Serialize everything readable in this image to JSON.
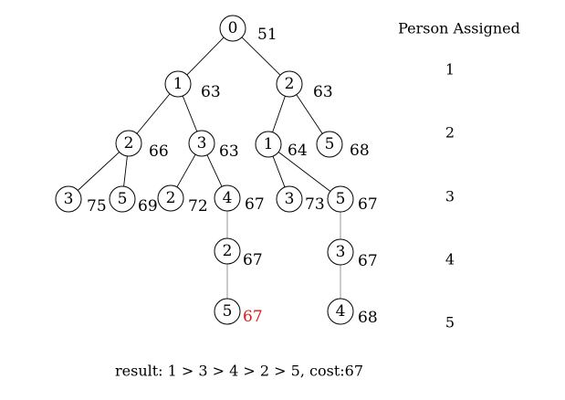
{
  "tree": {
    "nodes": [
      {
        "id": "n0",
        "label": "0",
        "cost": "51"
      },
      {
        "id": "n1",
        "label": "1",
        "cost": "63"
      },
      {
        "id": "n2",
        "label": "2",
        "cost": "63"
      },
      {
        "id": "n3",
        "label": "2",
        "cost": "66"
      },
      {
        "id": "n4",
        "label": "3",
        "cost": "63"
      },
      {
        "id": "n5",
        "label": "1",
        "cost": "64"
      },
      {
        "id": "n6",
        "label": "5",
        "cost": "68"
      },
      {
        "id": "n7",
        "label": "3",
        "cost": "75"
      },
      {
        "id": "n8",
        "label": "5",
        "cost": "69"
      },
      {
        "id": "n9",
        "label": "2",
        "cost": "72"
      },
      {
        "id": "n10",
        "label": "4",
        "cost": "67"
      },
      {
        "id": "n11",
        "label": "3",
        "cost": "73"
      },
      {
        "id": "n12",
        "label": "5",
        "cost": "67"
      },
      {
        "id": "n13",
        "label": "2",
        "cost": "67"
      },
      {
        "id": "n14",
        "label": "3",
        "cost": "67"
      },
      {
        "id": "n15",
        "label": "5",
        "cost": "67",
        "highlight": true
      },
      {
        "id": "n16",
        "label": "4",
        "cost": "68"
      }
    ],
    "edges": [
      [
        "n0",
        "n1"
      ],
      [
        "n0",
        "n2"
      ],
      [
        "n1",
        "n3"
      ],
      [
        "n1",
        "n4"
      ],
      [
        "n2",
        "n5"
      ],
      [
        "n2",
        "n6"
      ],
      [
        "n3",
        "n7"
      ],
      [
        "n3",
        "n8"
      ],
      [
        "n4",
        "n9"
      ],
      [
        "n4",
        "n10"
      ],
      [
        "n5",
        "n11"
      ],
      [
        "n5",
        "n12"
      ],
      [
        "n10",
        "n13"
      ],
      [
        "n12",
        "n14"
      ],
      [
        "n13",
        "n15"
      ],
      [
        "n14",
        "n16"
      ]
    ],
    "highlight_color": "#e3191a"
  },
  "sidebar": {
    "title": "Person Assigned",
    "persons": [
      "1",
      "2",
      "3",
      "4",
      "5"
    ]
  },
  "result": {
    "text": "result: 1 > 3 > 4 > 2 > 5, cost:67"
  }
}
